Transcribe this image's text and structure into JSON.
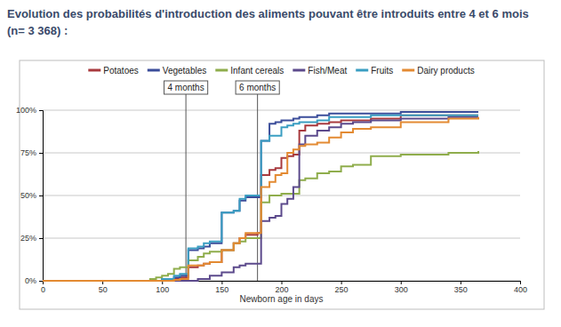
{
  "chart_data": {
    "type": "line",
    "title": "Evolution des probabilités d'introduction des aliments pouvant être introduits entre 4 et 6 mois (n= 3 368) :",
    "x_label": "Newborn age in days",
    "x": [
      0,
      90,
      95,
      100,
      105,
      110,
      115,
      122,
      130,
      135,
      140,
      150,
      160,
      165,
      170,
      180,
      183,
      190,
      195,
      200,
      205,
      210,
      215,
      220,
      230,
      240,
      250,
      260,
      275,
      300,
      340,
      365
    ],
    "series": [
      {
        "name": "Potatoes",
        "color": "#a83a3e",
        "values": [
          0,
          0,
          0,
          0,
          0,
          1,
          2,
          8,
          9,
          10,
          11,
          18,
          22,
          25,
          27,
          28,
          62,
          65,
          66,
          72,
          73,
          74,
          88,
          91,
          92,
          93,
          94,
          94,
          95,
          97,
          97,
          97
        ]
      },
      {
        "name": "Vegetables",
        "color": "#3b4d9a",
        "values": [
          0,
          0,
          0,
          1,
          1,
          2,
          3,
          18,
          19,
          20,
          22,
          40,
          41,
          47,
          49,
          49,
          82,
          92,
          93,
          94,
          94,
          95,
          96,
          96,
          97,
          98,
          98,
          98,
          98,
          99,
          99,
          99
        ]
      },
      {
        "name": "Infant cereals",
        "color": "#8fad4c",
        "values": [
          0,
          1,
          2,
          3,
          4,
          7,
          8,
          12,
          14,
          16,
          17,
          18,
          22,
          23,
          25,
          25,
          46,
          50,
          50,
          51,
          51,
          51,
          59,
          60,
          63,
          64,
          67,
          68,
          73,
          74,
          75,
          76
        ]
      },
      {
        "name": "Fish/Meat",
        "color": "#5c4a8c",
        "values": [
          0,
          0,
          0,
          0,
          0,
          0,
          0,
          0,
          1,
          1,
          3,
          5,
          8,
          9,
          10,
          10,
          35,
          37,
          38,
          45,
          48,
          55,
          80,
          85,
          88,
          90,
          92,
          93,
          94,
          95,
          96,
          96
        ]
      },
      {
        "name": "Fruits",
        "color": "#3a9ec2",
        "values": [
          0,
          0,
          0,
          1,
          1,
          3,
          4,
          19,
          20,
          22,
          23,
          40,
          41,
          48,
          50,
          50,
          82,
          85,
          85,
          90,
          91,
          92,
          93,
          93,
          94,
          96,
          96,
          96,
          97,
          97,
          97,
          97
        ]
      },
      {
        "name": "Dairy products",
        "color": "#e38a32",
        "values": [
          0,
          0,
          0,
          0,
          0,
          0.5,
          1,
          9,
          9,
          10,
          11,
          18,
          22,
          25,
          28,
          28,
          55,
          58,
          62,
          63,
          75,
          77,
          79,
          80,
          81,
          84,
          87,
          89,
          90,
          93,
          95,
          96
        ]
      }
    ],
    "annotations": [
      {
        "x": 120,
        "text": "4 months"
      },
      {
        "x": 180,
        "text": "6 months"
      }
    ],
    "line_style": "step",
    "xlim": [
      0,
      400
    ],
    "xticks": [
      0,
      50,
      100,
      150,
      200,
      250,
      300,
      350,
      400
    ],
    "ylim": [
      0,
      100
    ],
    "yticks": [
      {
        "value": 0,
        "label": "0%"
      },
      {
        "value": 25,
        "label": "25%"
      },
      {
        "value": 50,
        "label": "50%"
      },
      {
        "value": 75,
        "label": "75%"
      },
      {
        "value": 100,
        "label": "100%"
      }
    ],
    "grid": true,
    "legend": "top"
  }
}
